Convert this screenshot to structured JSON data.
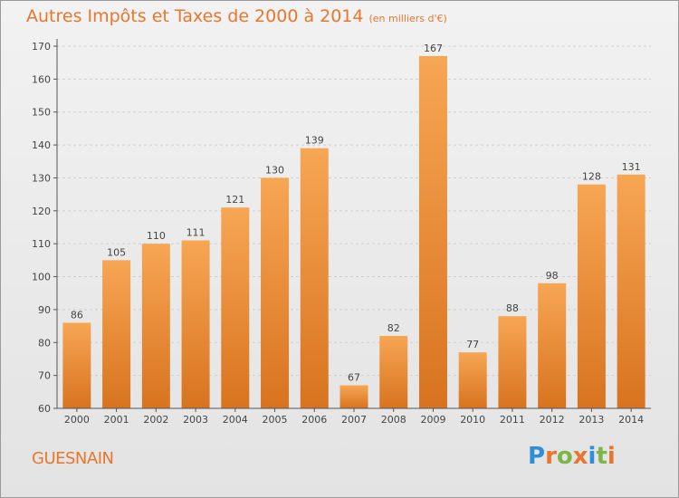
{
  "header": {
    "title": "Autres Impôts et Taxes de 2000 à 2014",
    "subtitle": "(en milliers d'€)"
  },
  "commune": "GUESNAIN",
  "logo": {
    "text": "Proxiti",
    "letter_colors": [
      "#2e8fd6",
      "#e8762d",
      "#7ab648",
      "#e8762d",
      "#2e8fd6",
      "#7ab648",
      "#e8762d"
    ]
  },
  "colors": {
    "bar_top": "#f7a654",
    "bar_bottom": "#d8731f",
    "axis": "#555555",
    "grid": "#cfcfcf",
    "label": "#444444"
  },
  "chart_data": {
    "type": "bar",
    "categories": [
      "2000",
      "2001",
      "2002",
      "2003",
      "2004",
      "2005",
      "2006",
      "2007",
      "2008",
      "2009",
      "2010",
      "2011",
      "2012",
      "2013",
      "2014"
    ],
    "values": [
      86,
      105,
      110,
      111,
      121,
      130,
      139,
      67,
      82,
      167,
      77,
      88,
      98,
      128,
      131
    ],
    "ylim": [
      60,
      170
    ],
    "yticks": [
      60,
      70,
      80,
      90,
      100,
      110,
      120,
      130,
      140,
      150,
      160,
      170
    ],
    "grid": true
  }
}
